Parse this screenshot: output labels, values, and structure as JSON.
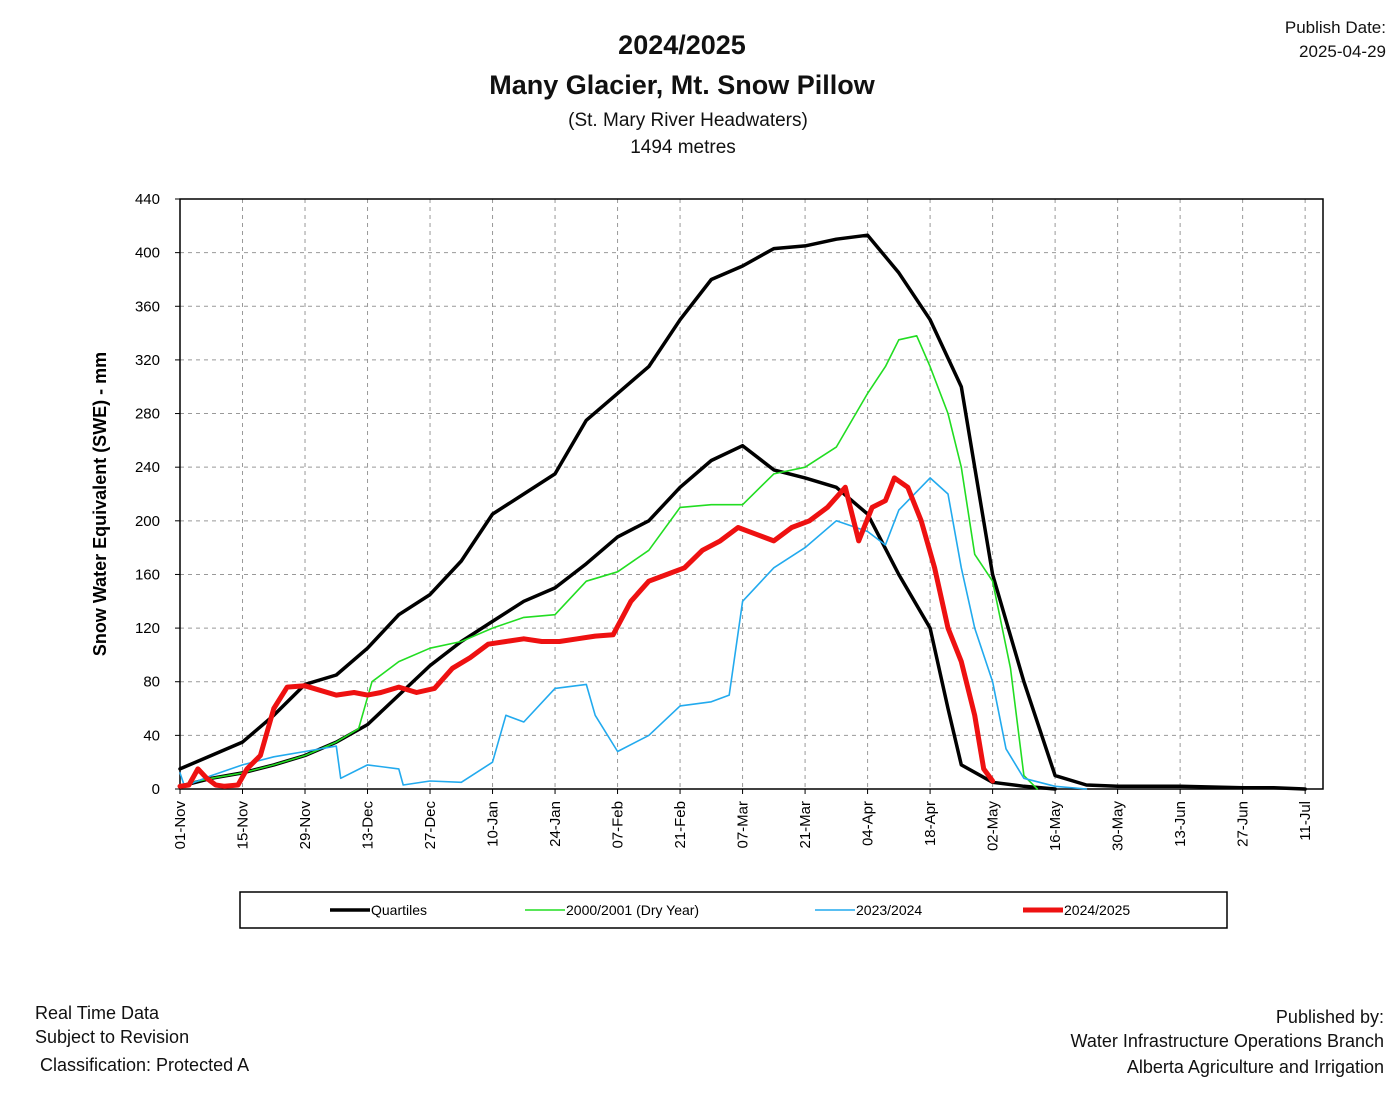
{
  "header": {
    "title_year": "2024/2025",
    "title_station": "Many Glacier, Mt.   Snow Pillow",
    "subtitle_basin": "(St. Mary River Headwaters)",
    "subtitle_elevation": "1494 metres",
    "publish_label": "Publish Date:",
    "publish_date": "2025-04-29"
  },
  "footer": {
    "left_line1": "Real Time Data",
    "left_line2": "Subject to Revision",
    "left_line3": "Classification: Protected A",
    "right_line1": "Published by:",
    "right_line2": "Water Infrastructure Operations Branch",
    "right_line3": "Alberta Agriculture and Irrigation"
  },
  "chart_data": {
    "type": "line",
    "title": "2024/2025 Many Glacier, Mt.   Snow Pillow",
    "ylabel": "Snow Water Equivalent (SWE)  -  mm",
    "xlabel": "",
    "ylim": [
      0,
      440
    ],
    "y_ticks": [
      "0",
      "40",
      "80",
      "120",
      "160",
      "200",
      "240",
      "280",
      "320",
      "360",
      "400",
      "440"
    ],
    "x_ticks": [
      "01-Nov",
      "15-Nov",
      "29-Nov",
      "13-Dec",
      "27-Dec",
      "10-Jan",
      "24-Jan",
      "07-Feb",
      "21-Feb",
      "07-Mar",
      "21-Mar",
      "04-Apr",
      "18-Apr",
      "02-May",
      "16-May",
      "30-May",
      "13-Jun",
      "27-Jun",
      "11-Jul"
    ],
    "x_unit": "days since 01-Nov",
    "xlim": [
      0,
      256
    ],
    "grid": true,
    "legend_position": "bottom",
    "colors": {
      "upper_quartile": "#000000",
      "lower_quartile": "#000000",
      "dry_year": "#22dd22",
      "last_year": "#22aaee",
      "current": "#ee1111"
    },
    "legend": [
      {
        "label": "Quartiles",
        "color": "#000000"
      },
      {
        "label": "2000/2001  (Dry Year)",
        "color": "#22dd22"
      },
      {
        "label": "2023/2024",
        "color": "#22aaee"
      },
      {
        "label": "2024/2025",
        "color": "#ee1111"
      }
    ],
    "series": [
      {
        "name": "Quartiles",
        "key": "upper_quartile",
        "points": [
          [
            0,
            15
          ],
          [
            7,
            25
          ],
          [
            14,
            35
          ],
          [
            21,
            55
          ],
          [
            28,
            78
          ],
          [
            35,
            85
          ],
          [
            42,
            105
          ],
          [
            49,
            130
          ],
          [
            56,
            145
          ],
          [
            63,
            170
          ],
          [
            70,
            205
          ],
          [
            77,
            220
          ],
          [
            84,
            235
          ],
          [
            91,
            275
          ],
          [
            98,
            295
          ],
          [
            105,
            315
          ],
          [
            112,
            350
          ],
          [
            119,
            380
          ],
          [
            126,
            390
          ],
          [
            133,
            403
          ],
          [
            140,
            405
          ],
          [
            147,
            410
          ],
          [
            154,
            413
          ],
          [
            161,
            385
          ],
          [
            168,
            350
          ],
          [
            175,
            300
          ],
          [
            178,
            240
          ],
          [
            182,
            160
          ],
          [
            189,
            80
          ],
          [
            196,
            10
          ],
          [
            203,
            3
          ],
          [
            210,
            2
          ],
          [
            224,
            2
          ],
          [
            238,
            1
          ],
          [
            245,
            1
          ],
          [
            252,
            0
          ]
        ]
      },
      {
        "name": "Quartiles",
        "key": "lower_quartile",
        "points": [
          [
            0,
            2
          ],
          [
            7,
            8
          ],
          [
            14,
            12
          ],
          [
            21,
            18
          ],
          [
            28,
            25
          ],
          [
            35,
            35
          ],
          [
            42,
            48
          ],
          [
            49,
            70
          ],
          [
            56,
            92
          ],
          [
            63,
            110
          ],
          [
            70,
            125
          ],
          [
            77,
            140
          ],
          [
            84,
            150
          ],
          [
            91,
            168
          ],
          [
            98,
            188
          ],
          [
            105,
            200
          ],
          [
            112,
            225
          ],
          [
            119,
            245
          ],
          [
            126,
            256
          ],
          [
            133,
            238
          ],
          [
            140,
            232
          ],
          [
            147,
            225
          ],
          [
            154,
            205
          ],
          [
            161,
            160
          ],
          [
            168,
            120
          ],
          [
            172,
            60
          ],
          [
            175,
            18
          ],
          [
            182,
            5
          ],
          [
            189,
            2
          ],
          [
            196,
            0
          ]
        ]
      },
      {
        "name": "2000/2001  (Dry Year)",
        "key": "dry_year",
        "points": [
          [
            0,
            3
          ],
          [
            7,
            8
          ],
          [
            14,
            12
          ],
          [
            21,
            18
          ],
          [
            28,
            25
          ],
          [
            35,
            35
          ],
          [
            40,
            45
          ],
          [
            43,
            80
          ],
          [
            49,
            95
          ],
          [
            56,
            105
          ],
          [
            63,
            110
          ],
          [
            70,
            120
          ],
          [
            77,
            128
          ],
          [
            84,
            130
          ],
          [
            91,
            155
          ],
          [
            98,
            162
          ],
          [
            105,
            178
          ],
          [
            112,
            210
          ],
          [
            119,
            212
          ],
          [
            126,
            212
          ],
          [
            133,
            235
          ],
          [
            140,
            240
          ],
          [
            147,
            255
          ],
          [
            154,
            295
          ],
          [
            158,
            315
          ],
          [
            161,
            335
          ],
          [
            165,
            338
          ],
          [
            168,
            315
          ],
          [
            172,
            280
          ],
          [
            175,
            240
          ],
          [
            178,
            175
          ],
          [
            182,
            155
          ],
          [
            186,
            90
          ],
          [
            189,
            10
          ],
          [
            192,
            0
          ]
        ]
      },
      {
        "name": "2023/2024",
        "key": "last_year",
        "points": [
          [
            0,
            12
          ],
          [
            1,
            2
          ],
          [
            7,
            10
          ],
          [
            14,
            18
          ],
          [
            21,
            24
          ],
          [
            28,
            28
          ],
          [
            35,
            32
          ],
          [
            36,
            8
          ],
          [
            42,
            18
          ],
          [
            49,
            15
          ],
          [
            50,
            3
          ],
          [
            56,
            6
          ],
          [
            63,
            5
          ],
          [
            70,
            20
          ],
          [
            73,
            55
          ],
          [
            77,
            50
          ],
          [
            84,
            75
          ],
          [
            91,
            78
          ],
          [
            93,
            55
          ],
          [
            98,
            28
          ],
          [
            105,
            40
          ],
          [
            112,
            62
          ],
          [
            119,
            65
          ],
          [
            123,
            70
          ],
          [
            126,
            140
          ],
          [
            133,
            165
          ],
          [
            140,
            180
          ],
          [
            147,
            200
          ],
          [
            154,
            192
          ],
          [
            158,
            182
          ],
          [
            161,
            208
          ],
          [
            168,
            232
          ],
          [
            172,
            220
          ],
          [
            175,
            165
          ],
          [
            178,
            120
          ],
          [
            182,
            80
          ],
          [
            185,
            30
          ],
          [
            189,
            8
          ],
          [
            196,
            2
          ],
          [
            203,
            0
          ]
        ]
      },
      {
        "name": "2024/2025",
        "key": "current",
        "points": [
          [
            0,
            2
          ],
          [
            2,
            3
          ],
          [
            4,
            15
          ],
          [
            6,
            8
          ],
          [
            8,
            3
          ],
          [
            10,
            2
          ],
          [
            13,
            3
          ],
          [
            15,
            15
          ],
          [
            18,
            25
          ],
          [
            21,
            60
          ],
          [
            24,
            76
          ],
          [
            28,
            77
          ],
          [
            31,
            74
          ],
          [
            35,
            70
          ],
          [
            39,
            72
          ],
          [
            42,
            70
          ],
          [
            45,
            72
          ],
          [
            49,
            76
          ],
          [
            53,
            72
          ],
          [
            57,
            75
          ],
          [
            61,
            90
          ],
          [
            65,
            98
          ],
          [
            69,
            108
          ],
          [
            73,
            110
          ],
          [
            77,
            112
          ],
          [
            81,
            110
          ],
          [
            85,
            110
          ],
          [
            89,
            112
          ],
          [
            93,
            114
          ],
          [
            97,
            115
          ],
          [
            101,
            140
          ],
          [
            105,
            155
          ],
          [
            109,
            160
          ],
          [
            113,
            165
          ],
          [
            117,
            178
          ],
          [
            121,
            185
          ],
          [
            125,
            195
          ],
          [
            129,
            190
          ],
          [
            133,
            185
          ],
          [
            137,
            195
          ],
          [
            141,
            200
          ],
          [
            145,
            210
          ],
          [
            149,
            225
          ],
          [
            152,
            185
          ],
          [
            155,
            210
          ],
          [
            158,
            215
          ],
          [
            160,
            232
          ],
          [
            163,
            225
          ],
          [
            166,
            200
          ],
          [
            169,
            165
          ],
          [
            172,
            120
          ],
          [
            175,
            95
          ],
          [
            178,
            55
          ],
          [
            180,
            15
          ],
          [
            182,
            6
          ]
        ]
      }
    ]
  }
}
